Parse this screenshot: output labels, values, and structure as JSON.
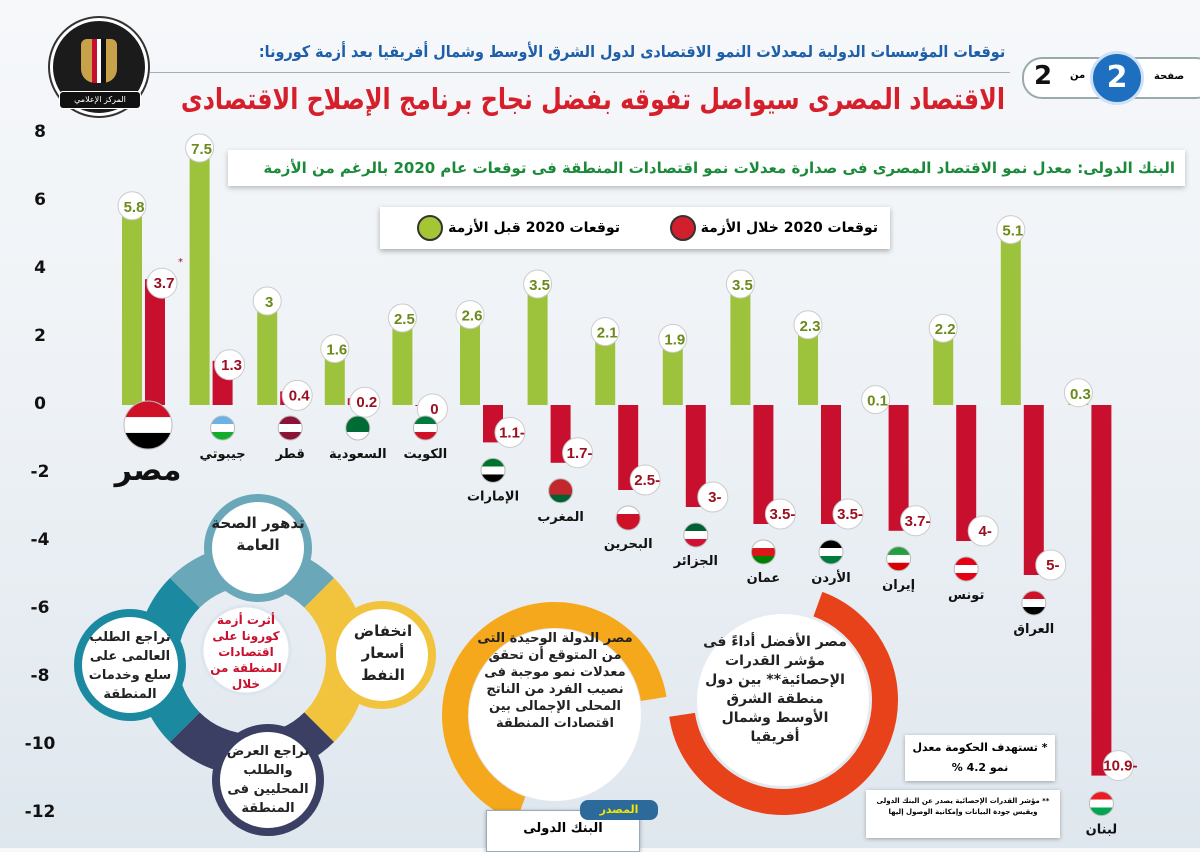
{
  "header": {
    "logo_text": "جمهورية مصر العربية - رئاسة مجلس الوزراء - المركز الإعلامي",
    "subtitle": "توقعات المؤسسات الدولية لمعدلات النمو الاقتصادى لدول الشرق الأوسط وشمال أفريقيا بعد أزمة كورونا:",
    "title": "الاقتصاد المصرى سيواصل تفوقه بفضل نجاح برنامج الإصلاح الاقتصادى",
    "page_label": "صفحة",
    "page_current": "2",
    "page_of": "من",
    "page_total": "2"
  },
  "banner": "البنك الدولى: معدل نمو الاقتصاد المصرى فى صدارة معدلات نمو اقتصادات المنطقة فى توقعات عام 2020 بالرغم من الأزمة",
  "chart_data": {
    "type": "bar",
    "ylim": [
      -12,
      8
    ],
    "yticks": [
      "8",
      "6",
      "4",
      "2",
      "0",
      "-2",
      "-4",
      "-6",
      "-8",
      "-10",
      "-12"
    ],
    "grid": false,
    "legend_placement": "top-center",
    "categories": [
      "مصر",
      "جيبوتي",
      "قطر",
      "السعودية",
      "الكويت",
      "الإمارات",
      "المغرب",
      "البحرين",
      "الجزائر",
      "عمان",
      "الأردن",
      "إيران",
      "تونس",
      "العراق",
      "لبنان"
    ],
    "series": [
      {
        "name": "توقعات 2020 قبل الأزمة",
        "color": "#9dc23b",
        "values": [
          5.8,
          7.5,
          3,
          1.6,
          2.5,
          2.6,
          3.5,
          2.1,
          1.9,
          3.5,
          2.3,
          0.1,
          2.2,
          5.1,
          0.3
        ]
      },
      {
        "name": "توقعات 2020 خلال الأزمة",
        "color": "#c8102e",
        "values": [
          3.7,
          1.3,
          0.4,
          0.2,
          0,
          -1.1,
          -1.7,
          -2.5,
          -3,
          -3.5,
          -3.5,
          -3.7,
          -4,
          -5,
          -10.9
        ]
      }
    ],
    "value_suffix": "%",
    "annotation_marker": "*",
    "flag_colors": [
      [
        "#ce1126",
        "#ffffff",
        "#000000"
      ],
      [
        "#6ab2e7",
        "#ffffff",
        "#12ad2b"
      ],
      [
        "#8a1538",
        "#ffffff",
        "#8a1538"
      ],
      [
        "#006c35",
        "#006c35",
        "#ffffff"
      ],
      [
        "#007a3d",
        "#ffffff",
        "#ce1126"
      ],
      [
        "#00732f",
        "#ffffff",
        "#000000"
      ],
      [
        "#c1272d",
        "#c1272d",
        "#006233"
      ],
      [
        "#ffffff",
        "#ce1126",
        "#ce1126"
      ],
      [
        "#006233",
        "#ffffff",
        "#d21034"
      ],
      [
        "#ffffff",
        "#db161b",
        "#008000"
      ],
      [
        "#000000",
        "#ffffff",
        "#007a3d"
      ],
      [
        "#239f40",
        "#ffffff",
        "#da0000"
      ],
      [
        "#e70013",
        "#ffffff",
        "#e70013"
      ],
      [
        "#ce1126",
        "#ffffff",
        "#000000"
      ],
      [
        "#ed1c24",
        "#ffffff",
        "#00a651"
      ]
    ]
  },
  "impact_diagram": {
    "center": "أثرت أزمة كورونا على اقتصادات المنطقة من خلال",
    "top": "تدهور الصحة العامة",
    "right": "انخفاض أسعار النفط",
    "bottom": "تراجع العرض والطلب المحليين فى المنطقة",
    "left": "تراجع الطلب العالمى على سلع وخدمات المنطقة",
    "colors": {
      "top": "#6aa7b8",
      "right": "#f2c33c",
      "bottom": "#3a3f63",
      "left": "#1b8aa0"
    }
  },
  "highlights": [
    {
      "text": "مصر الدولة الوحيدة التى من المتوقع أن تحقق معدلات نمو موجبة فى نصيب الفرد من الناتج المحلى الإجمالى بين اقتصادات المنطقة",
      "color": "#f5a81c"
    },
    {
      "text": "مصر الأفضل أداءً فى مؤشر القدرات الإحصائية** بين دول منطقة الشرق الأوسط وشمال أفريقيا",
      "color": "#e8421a"
    }
  ],
  "source": {
    "label": "المصدر",
    "value": "البنك الدولى"
  },
  "notes": {
    "target": "* تستهدف الحكومة معدل نمو 4.2 %",
    "footnote": "** مؤشر القدرات الإحصائية يصدر عن البنك الدولى ويقيس جودة البيانات وإمكانية الوصول إليها"
  }
}
